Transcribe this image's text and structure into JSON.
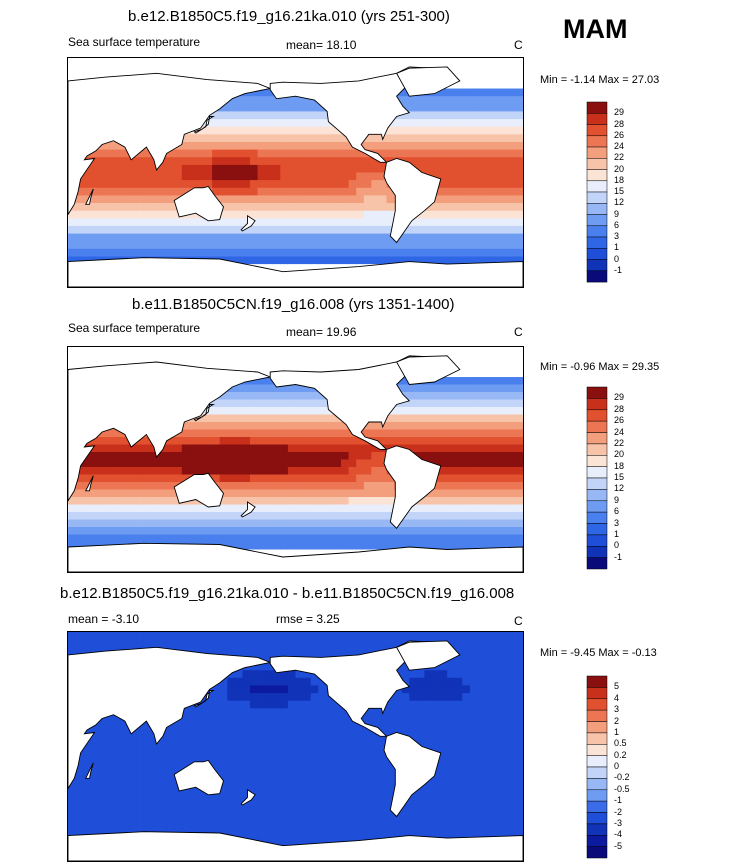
{
  "season": "MAM",
  "panels": [
    {
      "title": "b.e12.B1850C5.f19_g16.21ka.010 (yrs 251-300)",
      "left_label": "Sea surface temperature",
      "mid_label": "mean=  18.10",
      "units": "C",
      "minmax": "Min =  -1.14 Max =  27.03"
    },
    {
      "title": "b.e11.B1850C5CN.f19_g16.008 (yrs 1351-1400)",
      "left_label": "Sea surface temperature",
      "mid_label": "mean=  19.96",
      "units": "C",
      "minmax": "Min =  -0.96 Max =  29.35"
    },
    {
      "title": "b.e12.B1850C5.f19_g16.21ka.010 - b.e11.B1850C5CN.f19_g16.008",
      "left_label": "mean =  -3.10",
      "mid_label": "rmse =   3.25",
      "units": "C",
      "minmax": "Min =  -9.45 Max =  -0.13"
    }
  ],
  "chart_data": [
    {
      "type": "heatmap",
      "title": "b.e12.B1850C5.f19_g16.21ka.010 (yrs 251-300)",
      "variable": "Sea surface temperature",
      "units": "C",
      "mean": 18.1,
      "min": -1.14,
      "max": 27.03,
      "colorbar_levels": [
        "-1",
        "0",
        "1",
        "3",
        "6",
        "9",
        "12",
        "15",
        "18",
        "20",
        "22",
        "24",
        "26",
        "28",
        "29"
      ],
      "colorbar_colors": [
        "#0a0a7a",
        "#1133b8",
        "#1f4fd8",
        "#2f66e6",
        "#4a80ee",
        "#6e9cf2",
        "#97b8f5",
        "#c2d4f8",
        "#e8eefb",
        "#fbe3d6",
        "#f7c3a9",
        "#f39e7c",
        "#ec7654",
        "#e2512f",
        "#c9301c",
        "#8a0f0f"
      ]
    },
    {
      "type": "heatmap",
      "title": "b.e11.B1850C5CN.f19_g16.008 (yrs 1351-1400)",
      "variable": "Sea surface temperature",
      "units": "C",
      "mean": 19.96,
      "min": -0.96,
      "max": 29.35,
      "colorbar_levels": [
        "-1",
        "0",
        "1",
        "3",
        "6",
        "9",
        "12",
        "15",
        "18",
        "20",
        "22",
        "24",
        "26",
        "28",
        "29"
      ],
      "colorbar_colors": [
        "#0a0a7a",
        "#1133b8",
        "#1f4fd8",
        "#2f66e6",
        "#4a80ee",
        "#6e9cf2",
        "#97b8f5",
        "#c2d4f8",
        "#e8eefb",
        "#fbe3d6",
        "#f7c3a9",
        "#f39e7c",
        "#ec7654",
        "#e2512f",
        "#c9301c",
        "#8a0f0f"
      ]
    },
    {
      "type": "heatmap",
      "title": "b.e12.B1850C5.f19_g16.21ka.010 - b.e11.B1850C5CN.f19_g16.008",
      "units": "C",
      "mean": -3.1,
      "rmse": 3.25,
      "min": -9.45,
      "max": -0.13,
      "colorbar_levels": [
        "-5",
        "-4",
        "-3",
        "-2",
        "-1",
        "-0.5",
        "-0.2",
        "0",
        "0.2",
        "0.5",
        "1",
        "2",
        "3",
        "4",
        "5"
      ],
      "colorbar_colors": [
        "#0a0a7a",
        "#0c1aa0",
        "#1133b8",
        "#1f4fd8",
        "#3a6ce8",
        "#6e9cf2",
        "#97b8f5",
        "#c2d4f8",
        "#e8eefb",
        "#fbe3d6",
        "#f7c3a9",
        "#f39e7c",
        "#ec7654",
        "#e2512f",
        "#c9301c",
        "#8a0f0f"
      ]
    }
  ]
}
